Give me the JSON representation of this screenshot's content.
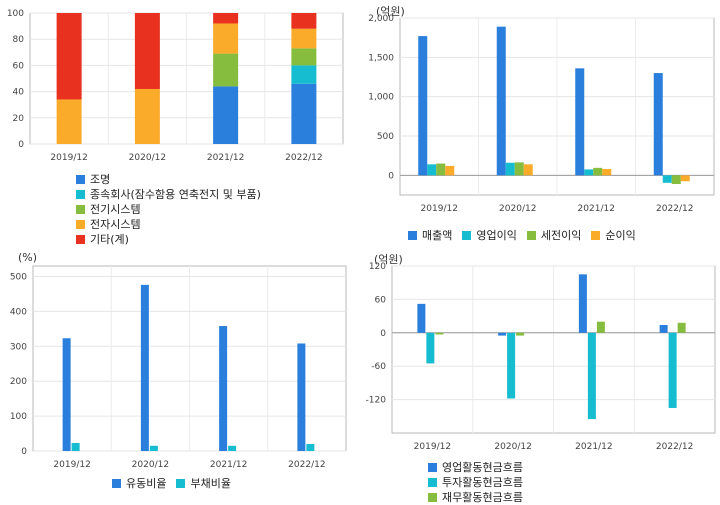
{
  "colors": {
    "blue": "#2a7fdc",
    "cyan": "#16bcd0",
    "green": "#86bd3f",
    "orange": "#fbab2a",
    "red": "#e8311f"
  },
  "chart_data": [
    {
      "id": "segment",
      "type": "bar",
      "stacked": true,
      "categories": [
        "2019/12",
        "2020/12",
        "2021/12",
        "2022/12"
      ],
      "ylim": [
        0,
        100
      ],
      "yticks": [
        0,
        20,
        40,
        60,
        80,
        100
      ],
      "series": [
        {
          "name": "조명",
          "color": "blue",
          "values": [
            0,
            0,
            44,
            46
          ]
        },
        {
          "name": "종속회사(잠수함용 연축전지 및 부품)",
          "color": "cyan",
          "values": [
            0,
            0,
            0,
            14
          ]
        },
        {
          "name": "전기시스템",
          "color": "green",
          "values": [
            0,
            0,
            25,
            13
          ]
        },
        {
          "name": "전자시스템",
          "color": "orange",
          "values": [
            34,
            42,
            23,
            15
          ]
        },
        {
          "name": "기타(계)",
          "color": "red",
          "values": [
            66,
            58,
            8,
            12
          ]
        }
      ],
      "legend": "bottom"
    },
    {
      "id": "income",
      "type": "bar",
      "unit": "(억원)",
      "categories": [
        "2019/12",
        "2020/12",
        "2021/12",
        "2022/12"
      ],
      "ylim": [
        -250,
        2000
      ],
      "yticks": [
        0,
        500,
        1000,
        1500,
        2000
      ],
      "ytick_labels": [
        "0",
        "500",
        "1,000",
        "1,500",
        "2,000"
      ],
      "series": [
        {
          "name": "매출액",
          "color": "blue",
          "values": [
            1770,
            1890,
            1360,
            1300
          ]
        },
        {
          "name": "영업이익",
          "color": "cyan",
          "values": [
            140,
            160,
            75,
            -95
          ]
        },
        {
          "name": "세전이익",
          "color": "green",
          "values": [
            150,
            165,
            95,
            -110
          ]
        },
        {
          "name": "순이익",
          "color": "orange",
          "values": [
            120,
            140,
            80,
            -75
          ]
        }
      ],
      "legend": "bottom"
    },
    {
      "id": "ratio",
      "type": "bar",
      "unit": "(%)",
      "categories": [
        "2019/12",
        "2020/12",
        "2021/12",
        "2022/12"
      ],
      "ylim": [
        0,
        530
      ],
      "yticks": [
        0,
        100,
        200,
        300,
        400,
        500
      ],
      "series": [
        {
          "name": "유동비율",
          "color": "blue",
          "values": [
            323,
            476,
            358,
            308
          ]
        },
        {
          "name": "부채비율",
          "color": "cyan",
          "values": [
            23,
            15,
            15,
            20
          ]
        }
      ],
      "legend": "bottom"
    },
    {
      "id": "cashflow",
      "type": "bar",
      "unit": "(억원)",
      "categories": [
        "2019/12",
        "2020/12",
        "2021/12",
        "2022/12"
      ],
      "ylim": [
        -180,
        120
      ],
      "yticks": [
        -120,
        -60,
        0,
        60,
        120
      ],
      "series": [
        {
          "name": "영업활동현금흐름",
          "color": "blue",
          "values": [
            52,
            -5,
            105,
            14
          ]
        },
        {
          "name": "투자활동현금흐름",
          "color": "cyan",
          "values": [
            -55,
            -118,
            -155,
            -135
          ]
        },
        {
          "name": "재무활동현금흐름",
          "color": "green",
          "values": [
            -3,
            -5,
            20,
            18
          ]
        }
      ],
      "legend": "bottom"
    }
  ]
}
